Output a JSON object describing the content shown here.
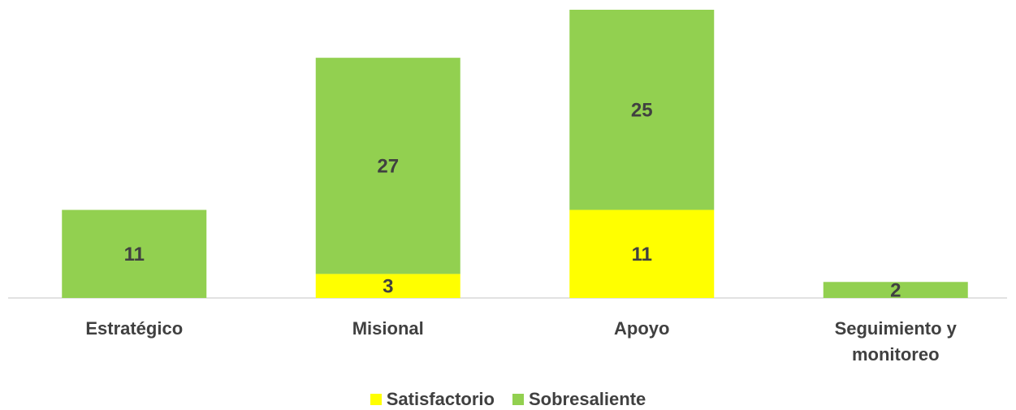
{
  "chart_data": {
    "type": "stacked_bar",
    "categories": [
      "Estratégico",
      "Misional",
      "Apoyo",
      "Seguimiento y monitoreo"
    ],
    "series": [
      {
        "name": "Satisfactorio",
        "color": "#ffff00",
        "values": [
          null,
          3,
          11,
          null
        ]
      },
      {
        "name": "Sobresaliente",
        "color": "#92d050",
        "values": [
          11,
          27,
          25,
          2
        ]
      }
    ],
    "legend": "bottom"
  }
}
